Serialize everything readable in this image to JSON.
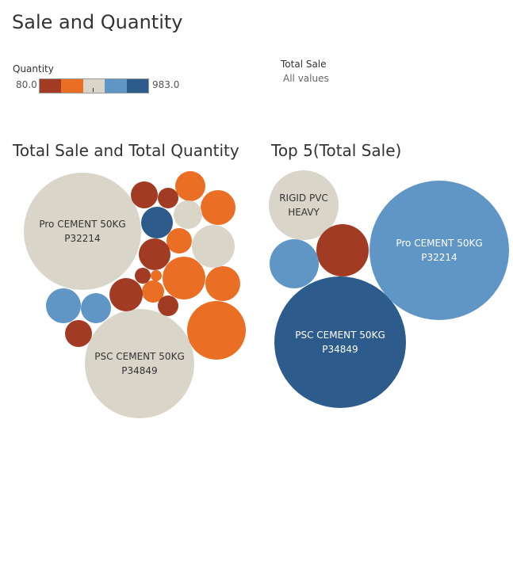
{
  "dashboard": {
    "title": "Sale and Quantity"
  },
  "legend_quantity": {
    "title": "Quantity",
    "min": "80.0",
    "max": "983.0",
    "colors": [
      "#a23b24",
      "#ea6f25",
      "#d9d5c9",
      "#5f96c5",
      "#2c5b8c"
    ]
  },
  "legend_total_sale": {
    "title": "Total Sale",
    "value": "All values"
  },
  "chart_data": [
    {
      "type": "bubble",
      "title": "Total Sale and Total Quantity",
      "size_by": "Total Sale",
      "color_by": "Quantity",
      "bubbles": [
        {
          "label": [
            "Pro CEMENT 50KG",
            "P32214"
          ],
          "color": "#d9d5c9"
        },
        {
          "label": [
            "PSC CEMENT 50KG",
            "P34849"
          ],
          "color": "#d9d5c9"
        },
        {
          "label": [],
          "color": "#ea6f25"
        },
        {
          "label": [],
          "color": "#ea6f25"
        },
        {
          "label": [],
          "color": "#ea6f25"
        },
        {
          "label": [],
          "color": "#ea6f25"
        },
        {
          "label": [],
          "color": "#ea6f25"
        },
        {
          "label": [],
          "color": "#ea6f25"
        },
        {
          "label": [],
          "color": "#ea6f25"
        },
        {
          "label": [],
          "color": "#ea6f25"
        },
        {
          "label": [],
          "color": "#d9d5c9"
        },
        {
          "label": [],
          "color": "#d9d5c9"
        },
        {
          "label": [],
          "color": "#2c5b8c"
        },
        {
          "label": [],
          "color": "#5f96c5"
        },
        {
          "label": [],
          "color": "#5f96c5"
        },
        {
          "label": [],
          "color": "#a23b24"
        },
        {
          "label": [],
          "color": "#a23b24"
        },
        {
          "label": [],
          "color": "#a23b24"
        },
        {
          "label": [],
          "color": "#a23b24"
        },
        {
          "label": [],
          "color": "#a23b24"
        },
        {
          "label": [],
          "color": "#a23b24"
        },
        {
          "label": [],
          "color": "#a23b24"
        }
      ]
    },
    {
      "type": "bubble",
      "title": "Top 5(Total Sale)",
      "size_by": "Total Sale",
      "color_by": "Quantity",
      "bubbles": [
        {
          "label": [
            "PSC CEMENT 50KG",
            "P34849"
          ],
          "color": "#2c5b8c"
        },
        {
          "label": [
            "Pro CEMENT 50KG",
            "P32214"
          ],
          "color": "#5f96c5"
        },
        {
          "label": [
            "RIGID PVC",
            "HEAVY"
          ],
          "color": "#d9d5c9"
        },
        {
          "label": [],
          "color": "#a23b24"
        },
        {
          "label": [],
          "color": "#5f96c5"
        }
      ]
    }
  ]
}
